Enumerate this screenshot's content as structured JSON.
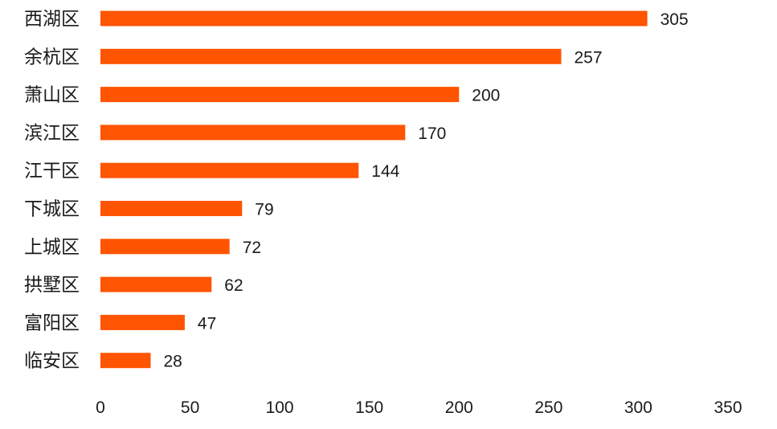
{
  "chart_data": {
    "type": "bar",
    "orientation": "horizontal",
    "categories": [
      "西湖区",
      "余杭区",
      "萧山区",
      "滨江区",
      "江干区",
      "下城区",
      "上城区",
      "拱墅区",
      "富阳区",
      "临安区"
    ],
    "values": [
      305,
      257,
      200,
      170,
      144,
      79,
      72,
      62,
      47,
      28
    ],
    "value_labels": [
      "305",
      "257",
      "200",
      "170",
      "144",
      "79",
      "72",
      "62",
      "47",
      "28"
    ],
    "x_ticks": [
      "0",
      "50",
      "100",
      "150",
      "200",
      "250",
      "300",
      "350"
    ],
    "xlim": [
      0,
      350
    ],
    "title": "",
    "xlabel": "",
    "ylabel": "",
    "grid": false,
    "legend": "none",
    "bar_color": "#ff5400"
  }
}
